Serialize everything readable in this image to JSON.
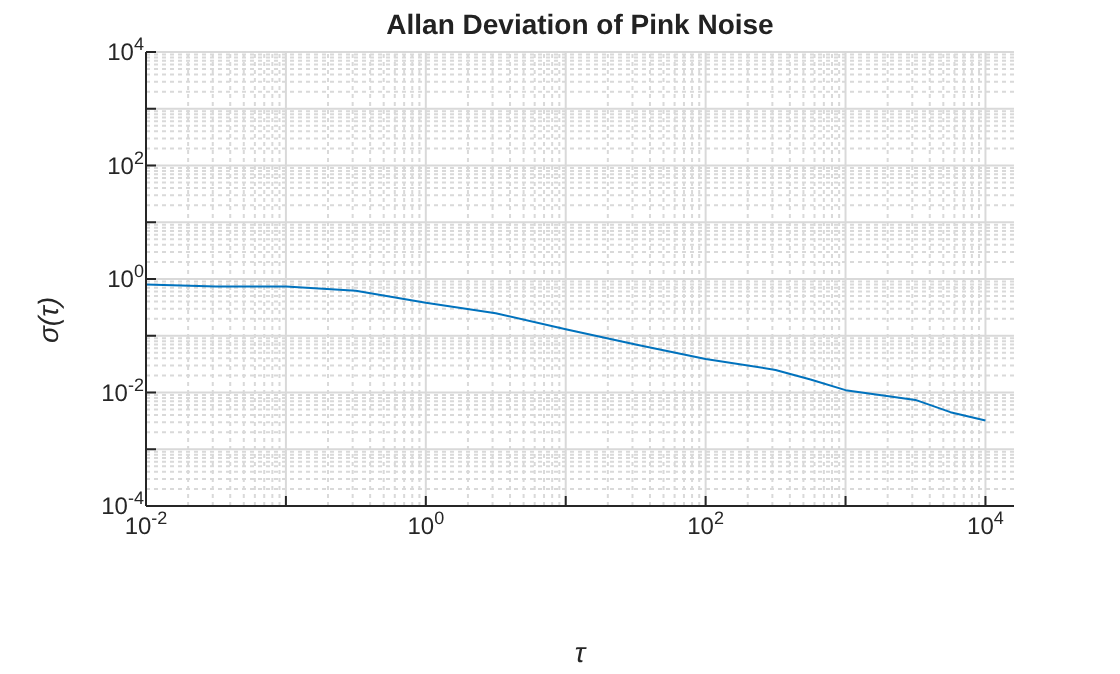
{
  "chart_data": {
    "type": "line",
    "title": "Allan Deviation of Pink Noise",
    "xlabel": "τ",
    "ylabel": "σ(τ)",
    "x": [
      0.01,
      0.0316,
      0.1,
      0.316,
      1,
      3.16,
      10,
      31.6,
      100,
      316,
      562,
      1000,
      3160,
      5620,
      10000
    ],
    "series": [
      {
        "color": "#0072bd",
        "values": [
          0.8,
          0.74,
          0.74,
          0.62,
          0.38,
          0.25,
          0.13,
          0.07,
          0.039,
          0.025,
          0.017,
          0.011,
          0.0074,
          0.0045,
          0.0032
        ]
      }
    ],
    "log": "xy",
    "xlim": [
      0.01,
      16000
    ],
    "ylim": [
      0.0001,
      10000
    ],
    "xticks": [
      {
        "value": 0.01,
        "label": "10$^{-2}$"
      },
      {
        "value": 0.1,
        "label": null
      },
      {
        "value": 1,
        "label": "10$^{0}$"
      },
      {
        "value": 10,
        "label": null
      },
      {
        "value": 100,
        "label": "10$^{2}$"
      },
      {
        "value": 1000,
        "label": null
      },
      {
        "value": 10000,
        "label": "10$^{4}$"
      }
    ],
    "yticks": [
      {
        "value": 0.0001,
        "label": "10$^{-4}$"
      },
      {
        "value": 0.001,
        "label": null
      },
      {
        "value": 0.01,
        "label": "10$^{-2}$"
      },
      {
        "value": 0.1,
        "label": null
      },
      {
        "value": 1,
        "label": "10$^{0}$"
      },
      {
        "value": 10,
        "label": null
      },
      {
        "value": 100,
        "label": "10$^{2}$"
      },
      {
        "value": 1000,
        "label": null
      },
      {
        "value": 10000,
        "label": "10$^{4}$"
      }
    ],
    "grid": true,
    "line_style": "solid",
    "marker": "none"
  }
}
